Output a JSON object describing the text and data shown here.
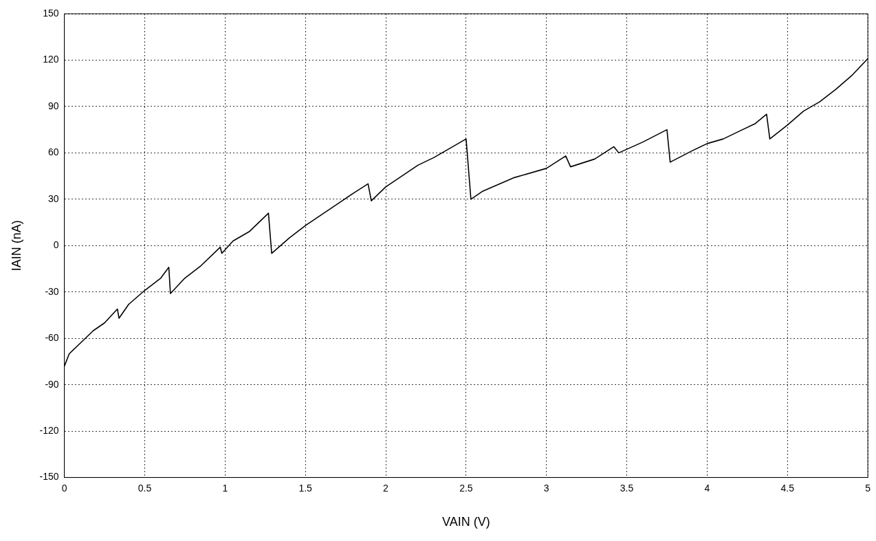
{
  "chart_data": {
    "type": "line",
    "xlabel": "VAIN (V)",
    "ylabel": "IAIN (nA)",
    "xlim": [
      0,
      5
    ],
    "xticks": [
      0,
      0.5,
      1,
      1.5,
      2,
      2.5,
      3,
      3.5,
      4,
      4.5,
      5
    ],
    "ylim": [
      -150,
      150
    ],
    "yticks": [
      -150,
      -120,
      -90,
      -60,
      -30,
      0,
      30,
      60,
      90,
      120,
      150
    ],
    "grid": true,
    "legend": false,
    "marker": "none",
    "line_style": "solid",
    "series": [
      {
        "color": "#000000",
        "x": [
          0,
          0.03,
          0.1,
          0.18,
          0.25,
          0.33,
          0.34,
          0.4,
          0.5,
          0.6,
          0.65,
          0.66,
          0.75,
          0.85,
          0.97,
          0.98,
          1.05,
          1.15,
          1.27,
          1.29,
          1.4,
          1.5,
          1.6,
          1.7,
          1.8,
          1.89,
          1.91,
          2.0,
          2.1,
          2.2,
          2.3,
          2.4,
          2.5,
          2.53,
          2.6,
          2.8,
          3.0,
          3.12,
          3.15,
          3.3,
          3.42,
          3.45,
          3.6,
          3.75,
          3.77,
          3.9,
          4.0,
          4.1,
          4.2,
          4.3,
          4.37,
          4.39,
          4.5,
          4.6,
          4.7,
          4.8,
          4.9,
          5.0
        ],
        "values": [
          -78,
          -70,
          -63,
          -55,
          -50,
          -41,
          -47,
          -38,
          -29,
          -21,
          -14,
          -31,
          -21,
          -13,
          -1,
          -5,
          3,
          9,
          21,
          -5,
          5,
          13,
          20,
          27,
          34,
          40,
          29,
          38,
          45,
          52,
          57,
          63,
          69,
          30,
          35,
          44,
          50,
          58,
          51,
          56,
          64,
          60,
          67,
          75,
          54,
          61,
          66,
          69,
          74,
          79,
          85,
          69,
          78,
          87,
          93,
          101,
          110,
          121
        ]
      }
    ]
  }
}
